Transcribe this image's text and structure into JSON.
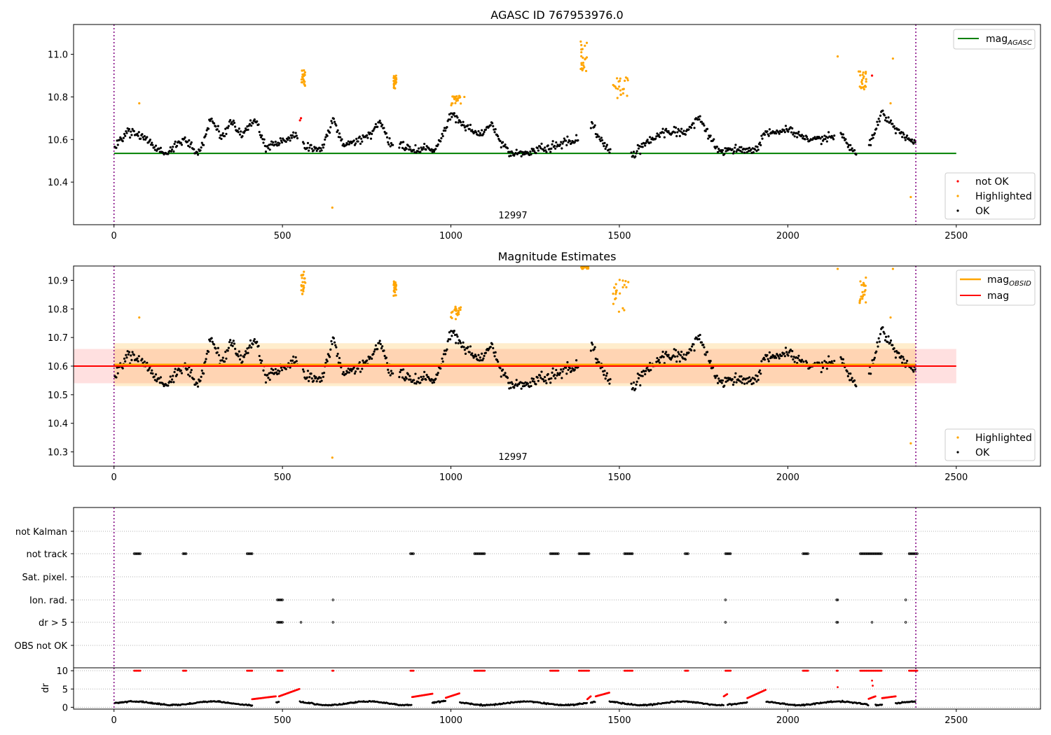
{
  "chart_data": [
    {
      "type": "scatter",
      "title": "AGASC ID 767953976.0",
      "annotation": "12997",
      "xlim": [
        -120,
        2750
      ],
      "ylim": [
        10.2,
        11.14
      ],
      "xticks": [
        0,
        500,
        1000,
        1500,
        2000,
        2500
      ],
      "yticks": [
        10.4,
        10.6,
        10.8,
        11.0
      ],
      "ytick_labels": [
        "10.4",
        "10.6",
        "10.8",
        "11.0"
      ],
      "vlines": [
        0,
        2380
      ],
      "lines": [
        {
          "name": "mag",
          "subscript": "AGASC",
          "y": 10.535,
          "x": [
            0,
            2500
          ],
          "color": "#008000"
        }
      ],
      "legend_lines": {
        "position": "upper right"
      },
      "legend_points": {
        "position": "lower right"
      },
      "series": [
        {
          "name": "not OK",
          "color": "#ff0000",
          "points": [
            [
              552,
              10.69
            ],
            [
              555,
              10.7
            ],
            [
              2250,
              10.9
            ]
          ]
        },
        {
          "name": "Highlighted",
          "color": "#ffa500"
        },
        {
          "name": "OK",
          "color": "#000000"
        }
      ],
      "highlighted_clusters": [
        {
          "x": [
            556,
            568
          ],
          "y": [
            10.85,
            10.93
          ]
        },
        {
          "x": [
            830,
            838
          ],
          "y": [
            10.84,
            10.9
          ]
        },
        {
          "x": [
            1000,
            1030
          ],
          "y": [
            10.76,
            10.81
          ]
        },
        {
          "x": [
            1385,
            1405
          ],
          "y": [
            10.92,
            11.06
          ]
        },
        {
          "x": [
            1480,
            1530
          ],
          "y": [
            10.78,
            10.91
          ]
        },
        {
          "x": [
            2210,
            2235
          ],
          "y": [
            10.82,
            10.92
          ]
        }
      ],
      "highlighted_points": [
        [
          75,
          10.77
        ],
        [
          648,
          10.28
        ],
        [
          1040,
          10.8
        ],
        [
          2148,
          10.99
        ],
        [
          2305,
          10.77
        ],
        [
          2312,
          10.98
        ],
        [
          2365,
          10.33
        ]
      ]
    },
    {
      "type": "scatter",
      "title": "Magnitude Estimates",
      "annotation": "12997",
      "xlim": [
        -120,
        2750
      ],
      "ylim": [
        10.25,
        10.95
      ],
      "xticks": [
        0,
        500,
        1000,
        1500,
        2000,
        2500
      ],
      "yticks": [
        10.3,
        10.4,
        10.5,
        10.6,
        10.7,
        10.8,
        10.9
      ],
      "ytick_labels": [
        "10.3",
        "10.4",
        "10.5",
        "10.6",
        "10.7",
        "10.8",
        "10.9"
      ],
      "vlines": [
        0,
        2380
      ],
      "lines": [
        {
          "name": "mag",
          "subscript": "OBSID",
          "y": 10.605,
          "x": [
            0,
            2380
          ],
          "color": "#ffa500",
          "band": [
            10.53,
            10.68
          ]
        },
        {
          "name": "mag",
          "y": 10.6,
          "x": [
            -120,
            2500
          ],
          "color": "#ff0000",
          "band": [
            10.54,
            10.66
          ]
        }
      ],
      "legend_lines": {
        "position": "upper right"
      },
      "legend_points": {
        "position": "lower right"
      },
      "series": [
        {
          "name": "Highlighted",
          "color": "#ffa500"
        },
        {
          "name": "OK",
          "color": "#000000"
        }
      ],
      "highlighted_clusters": [
        {
          "x": [
            556,
            568
          ],
          "y": [
            10.85,
            10.93
          ]
        },
        {
          "x": [
            830,
            838
          ],
          "y": [
            10.84,
            10.9
          ]
        },
        {
          "x": [
            1000,
            1030
          ],
          "y": [
            10.76,
            10.81
          ]
        },
        {
          "x": [
            1385,
            1410
          ],
          "y": [
            10.94,
            10.95
          ]
        },
        {
          "x": [
            1480,
            1530
          ],
          "y": [
            10.78,
            10.91
          ]
        },
        {
          "x": [
            2210,
            2235
          ],
          "y": [
            10.82,
            10.91
          ]
        }
      ],
      "highlighted_points": [
        [
          75,
          10.77
        ],
        [
          648,
          10.28
        ],
        [
          2148,
          10.94
        ],
        [
          2305,
          10.77
        ],
        [
          2312,
          10.94
        ],
        [
          2365,
          10.33
        ]
      ]
    },
    {
      "type": "scatter",
      "xlim": [
        -120,
        2750
      ],
      "categories": [
        "not Kalman",
        "not track",
        "Sat. pixel.",
        "Ion. rad.",
        "dr > 5",
        "OBS not OK"
      ],
      "vlines": [
        0,
        2380
      ],
      "flag_intervals": {
        "not track": [
          [
            60,
            80
          ],
          [
            205,
            215
          ],
          [
            395,
            410
          ],
          [
            880,
            890
          ],
          [
            1070,
            1100
          ],
          [
            1295,
            1320
          ],
          [
            1380,
            1410
          ],
          [
            1515,
            1540
          ],
          [
            1695,
            1705
          ],
          [
            1815,
            1830
          ],
          [
            2045,
            2060
          ],
          [
            2215,
            2280
          ],
          [
            2360,
            2385
          ]
        ],
        "Ion. rad.": [
          [
            485,
            500
          ],
          [
            650,
            652
          ],
          [
            1815,
            1817
          ],
          [
            2145,
            2148
          ],
          [
            2350,
            2352
          ]
        ],
        "dr > 5": [
          [
            485,
            500
          ],
          [
            555,
            557
          ],
          [
            650,
            652
          ],
          [
            1815,
            1817
          ],
          [
            2145,
            2150
          ],
          [
            2250,
            2252
          ],
          [
            2350,
            2352
          ]
        ]
      }
    },
    {
      "type": "scatter",
      "ylabel": "dr",
      "xlim": [
        -120,
        2750
      ],
      "ylim": [
        -0.5,
        10.8
      ],
      "xticks": [
        0,
        500,
        1000,
        1500,
        2000,
        2500
      ],
      "yticks": [
        0,
        5,
        10
      ],
      "ytick_labels": [
        "0",
        "5",
        "10"
      ],
      "vlines": [
        0,
        2380
      ],
      "clipped_at": 10,
      "clipped_intervals": [
        [
          60,
          80
        ],
        [
          205,
          215
        ],
        [
          395,
          410
        ],
        [
          485,
          500
        ],
        [
          648,
          652
        ],
        [
          880,
          890
        ],
        [
          1070,
          1100
        ],
        [
          1295,
          1320
        ],
        [
          1380,
          1410
        ],
        [
          1515,
          1540
        ],
        [
          1695,
          1705
        ],
        [
          1815,
          1830
        ],
        [
          2045,
          2060
        ],
        [
          2145,
          2150
        ],
        [
          2215,
          2280
        ],
        [
          2360,
          2385
        ]
      ],
      "high_segments": [
        {
          "x": [
            410,
            480
          ],
          "y": [
            2.2,
            3.0
          ]
        },
        {
          "x": [
            490,
            550
          ],
          "y": [
            3.0,
            5.0
          ]
        },
        {
          "x": [
            885,
            945
          ],
          "y": [
            2.8,
            3.7
          ]
        },
        {
          "x": [
            985,
            1025
          ],
          "y": [
            2.6,
            3.8
          ]
        },
        {
          "x": [
            1405,
            1415
          ],
          "y": [
            2.2,
            3.0
          ]
        },
        {
          "x": [
            1430,
            1470
          ],
          "y": [
            3.0,
            4.0
          ]
        },
        {
          "x": [
            1810,
            1820
          ],
          "y": [
            3.0,
            3.6
          ]
        },
        {
          "x": [
            1880,
            1935
          ],
          "y": [
            2.5,
            4.8
          ]
        },
        {
          "x": [
            2240,
            2260
          ],
          "y": [
            2.3,
            3.0
          ]
        },
        {
          "x": [
            2280,
            2320
          ],
          "y": [
            2.5,
            3.0
          ]
        }
      ],
      "isolated_red": [
        [
          2148,
          5.5
        ],
        [
          2250,
          7.3
        ],
        [
          2252,
          5.9
        ]
      ]
    }
  ]
}
